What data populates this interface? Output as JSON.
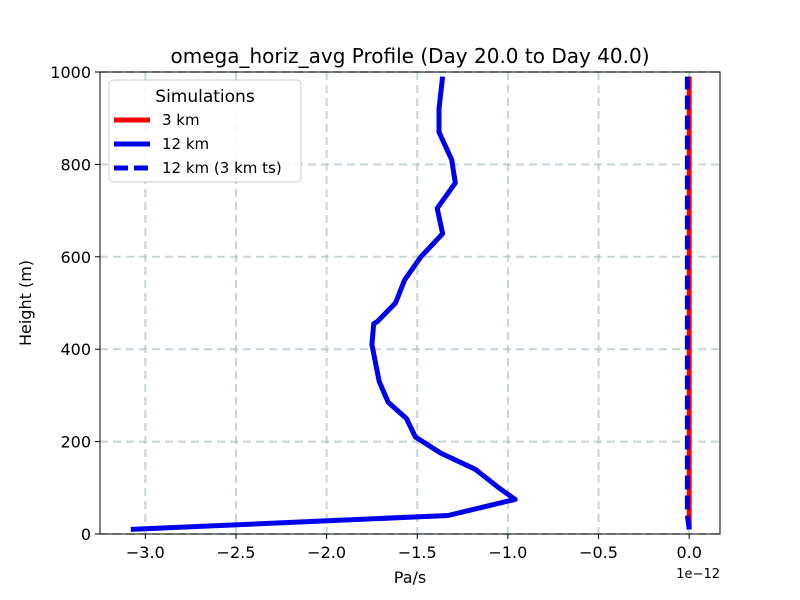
{
  "chart_data": {
    "type": "line",
    "title": "omega_horiz_avg Profile (Day 20.0 to Day 40.0)",
    "xlabel": "Pa/s",
    "ylabel": "Height (m)",
    "x_offset_label": "1e−12",
    "xlim": [
      -3.25,
      0.17
    ],
    "ylim": [
      0,
      1000
    ],
    "xticks": [
      -3.0,
      -2.5,
      -2.0,
      -1.5,
      -1.0,
      -0.5,
      0.0
    ],
    "xtick_labels": [
      "−3.0",
      "−2.5",
      "−2.0",
      "−1.5",
      "−1.0",
      "−0.5",
      "0.0"
    ],
    "yticks": [
      0,
      200,
      400,
      600,
      800,
      1000
    ],
    "ytick_labels": [
      "0",
      "200",
      "400",
      "600",
      "800",
      "1000"
    ],
    "grid": true,
    "legend": {
      "title": "Simulations",
      "placement": "top-left"
    },
    "series": [
      {
        "name": "3 km",
        "color": "#ff0000",
        "style": "solid",
        "x": [
          0.0,
          0.0,
          0.0,
          0.0,
          0.0,
          0.0,
          0.0,
          0.0,
          0.0,
          0.0,
          0.0,
          0.0,
          0.0
        ],
        "y": [
          10,
          40,
          75,
          140,
          210,
          290,
          410,
          500,
          600,
          700,
          800,
          900,
          990
        ]
      },
      {
        "name": "12 km",
        "color": "#0000ee",
        "style": "solid",
        "x": [
          -3.08,
          -1.33,
          -0.96,
          -1.05,
          -1.18,
          -1.37,
          -1.51,
          -1.56,
          -1.66,
          -1.71,
          -1.75,
          -1.74,
          -1.72,
          -1.62,
          -1.57,
          -1.48,
          -1.36,
          -1.39,
          -1.29,
          -1.31,
          -1.38,
          -1.38,
          -1.36
        ],
        "y": [
          10,
          40,
          75,
          100,
          140,
          175,
          210,
          250,
          285,
          330,
          410,
          455,
          460,
          500,
          550,
          600,
          650,
          705,
          760,
          810,
          870,
          920,
          990
        ]
      },
      {
        "name": "12 km (3 km ts)",
        "color": "#0000ee",
        "style": "dashed",
        "x": [
          0.0,
          -0.01,
          -0.01,
          -0.01,
          -0.01,
          -0.01,
          -0.01,
          -0.01,
          -0.01,
          -0.01,
          -0.01,
          -0.01,
          -0.01
        ],
        "y": [
          10,
          40,
          75,
          140,
          210,
          290,
          410,
          500,
          600,
          700,
          800,
          900,
          990
        ]
      }
    ]
  }
}
